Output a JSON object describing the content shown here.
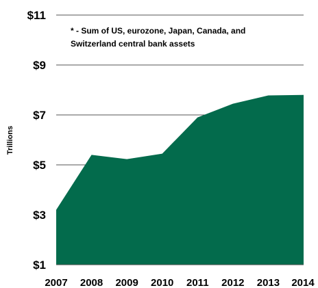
{
  "chart_data": {
    "type": "area",
    "x": [
      "2007",
      "2008",
      "2009",
      "2010",
      "2011",
      "2012",
      "2013",
      "2014"
    ],
    "values": [
      3.2,
      5.4,
      5.23,
      5.45,
      6.9,
      7.45,
      7.78,
      7.8
    ],
    "ylabel": "Trillions",
    "ylim": [
      1,
      11
    ],
    "yticks": [
      1,
      3,
      5,
      7,
      9,
      11
    ],
    "ytick_labels": [
      "$1",
      "$3",
      "$5",
      "$7",
      "$9",
      "$11"
    ],
    "annotation": {
      "line1": "* - Sum of US, eurozone, Japan, Canada, and",
      "line2": "Switzerland central bank assets"
    },
    "grid": "horizontal",
    "fill_color": "#036b4c",
    "grid_color": "#555555"
  }
}
